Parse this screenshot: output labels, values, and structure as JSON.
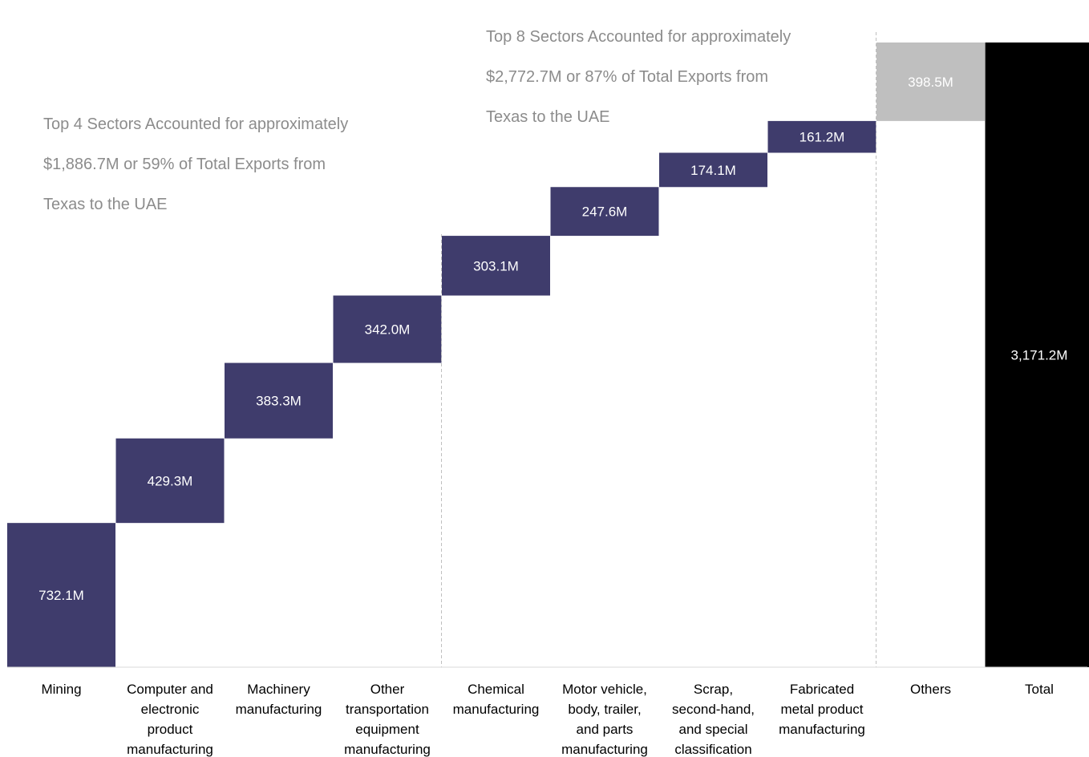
{
  "chart_data": {
    "type": "bar",
    "subtype": "waterfall",
    "categories": [
      "Mining",
      "Computer and electronic product manufacturing",
      "Machinery manufacturing",
      "Other transportation equipment manufacturing",
      "Chemical manufacturing",
      "Motor vehicle, body, trailer, and parts manufacturing",
      "Scrap, second-hand, and special classification",
      "Fabricated metal product manufacturing",
      "Others",
      "Total"
    ],
    "category_lines": [
      [
        "Mining"
      ],
      [
        "Computer and",
        "electronic",
        "product",
        "manufacturing"
      ],
      [
        "Machinery",
        "manufacturing"
      ],
      [
        "Other",
        "transportation",
        "equipment",
        "manufacturing"
      ],
      [
        "Chemical",
        "manufacturing"
      ],
      [
        "Motor vehicle,",
        "body, trailer,",
        "and parts",
        "manufacturing"
      ],
      [
        "Scrap,",
        "second-hand,",
        "and special",
        "classification"
      ],
      [
        "Fabricated",
        "metal product",
        "manufacturing"
      ],
      [
        "Others"
      ],
      [
        "Total"
      ]
    ],
    "values": [
      732.1,
      429.3,
      383.3,
      342.0,
      303.1,
      247.6,
      174.1,
      161.2,
      398.5,
      3171.2
    ],
    "data_labels": [
      "732.1M",
      "429.3M",
      "383.3M",
      "342.0M",
      "303.1M",
      "247.6M",
      "174.1M",
      "161.2M",
      "398.5M",
      "3,171.2M"
    ],
    "bar_kinds": [
      "step",
      "step",
      "step",
      "step",
      "step",
      "step",
      "step",
      "step",
      "others",
      "total"
    ],
    "colors": {
      "step": "#3f3c6c",
      "others": "#bfbfbf",
      "total": "#000000",
      "label": "#ffffff",
      "divider": "#bfbfbf",
      "axis": "#d9d9d9",
      "annotation": "#8c8c8c"
    },
    "ylim": [
      0,
      3171.2
    ],
    "dividers_after_index": [
      3,
      7
    ],
    "annotations": [
      {
        "id": "top8",
        "lines": [
          "Top 8 Sectors Accounted for approximately",
          "$2,772.7M or 87% of Total Exports from",
          "Texas to the UAE"
        ]
      },
      {
        "id": "top4",
        "lines": [
          "Top 4 Sectors Accounted for approximately",
          "$1,886.7M or 59% of Total Exports from",
          "Texas to the UAE"
        ]
      }
    ],
    "grid": false,
    "legend": "none",
    "title": "",
    "xlabel": "",
    "ylabel": ""
  }
}
